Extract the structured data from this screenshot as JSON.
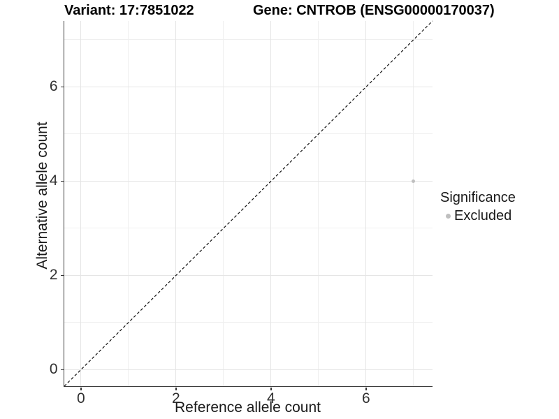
{
  "chart_data": {
    "type": "scatter",
    "title_left": "Variant: 17:7851022",
    "title_right": "Gene: CNTROB (ENSG00000170037)",
    "xlabel": "Reference allele count",
    "ylabel": "Alternative allele count",
    "xlim": [
      -0.35,
      7.4
    ],
    "ylim": [
      -0.35,
      7.4
    ],
    "x_ticks": [
      0,
      2,
      4,
      6
    ],
    "y_ticks": [
      0,
      2,
      4,
      6
    ],
    "grid_major": [
      0,
      2,
      4,
      6
    ],
    "grid_minor": [
      1,
      3,
      5,
      7
    ],
    "grid": true,
    "points": [
      {
        "x": 7,
        "y": 4,
        "significance": "Excluded"
      }
    ],
    "reference_line": {
      "kind": "diagonal",
      "equation": "y = x",
      "style": "dashed",
      "color": "#111111"
    },
    "legend": {
      "title": "Significance",
      "position": "right",
      "items": [
        {
          "label": "Excluded",
          "color": "#bfbfbf",
          "shape": "circle"
        }
      ]
    },
    "style_colors": {
      "point_excluded": "#bfbfbf",
      "grid_major": "#e5e5e5",
      "grid_minor": "#efefef",
      "axis_line": "#3c3c3c",
      "text": "#1a1a1a"
    }
  }
}
